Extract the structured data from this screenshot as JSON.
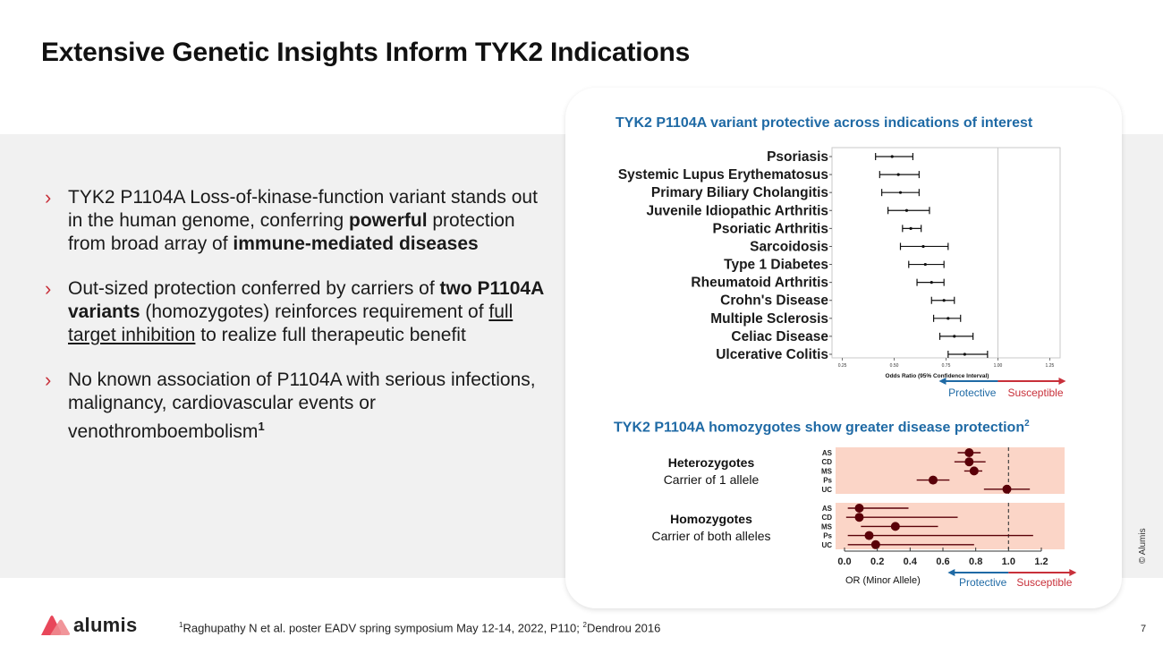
{
  "title": "Extensive Genetic Insights Inform TYK2 Indications",
  "bullets": [
    {
      "parts": [
        {
          "text": "TYK2 P1104A Loss-of-kinase-function variant stands out in the human genome, conferring ",
          "style": "normal"
        },
        {
          "text": "powerful",
          "style": "bold"
        },
        {
          "text": " protection from broad array of ",
          "style": "normal"
        },
        {
          "text": "immune-mediated diseases",
          "style": "bold"
        }
      ]
    },
    {
      "parts": [
        {
          "text": "Out-sized protection conferred by carriers of ",
          "style": "normal"
        },
        {
          "text": "two P1104A variants",
          "style": "bold"
        },
        {
          "text": " (homozygotes) reinforces requirement of ",
          "style": "normal"
        },
        {
          "text": "full target inhibition",
          "style": "underline"
        },
        {
          "text": " to realize full therapeutic benefit",
          "style": "normal"
        }
      ]
    },
    {
      "parts": [
        {
          "text": "No known association of P1104A with serious infections, malignancy, cardiovascular events or venothromboembolism",
          "style": "normal"
        },
        {
          "text": "1",
          "style": "supbold"
        }
      ]
    }
  ],
  "chart_data": [
    {
      "type": "forest",
      "title": "TYK2 P1104A variant protective across indications of interest",
      "xlabel": "Odds Ratio (95% Confidence Interval)",
      "xlim": [
        0.2,
        1.3
      ],
      "xticks": [
        "0.25",
        "0.50",
        "0.75",
        "1.00",
        "1.25"
      ],
      "xtick_values": [
        0.25,
        0.5,
        0.75,
        1.0,
        1.25
      ],
      "reference_line": 1.0,
      "grid": false,
      "direction_labels": {
        "left": "Protective",
        "right": "Susceptible"
      },
      "rows": [
        {
          "label": "Psoriasis",
          "or": 0.49,
          "lo": 0.41,
          "hi": 0.59
        },
        {
          "label": "Systemic Lupus Erythematosus",
          "or": 0.52,
          "lo": 0.43,
          "hi": 0.62
        },
        {
          "label": "Primary Biliary Cholangitis",
          "or": 0.53,
          "lo": 0.44,
          "hi": 0.62
        },
        {
          "label": "Juvenile Idiopathic Arthritis",
          "or": 0.56,
          "lo": 0.47,
          "hi": 0.67
        },
        {
          "label": "Psoriatic Arthritis",
          "or": 0.58,
          "lo": 0.54,
          "hi": 0.63
        },
        {
          "label": "Sarcoidosis",
          "or": 0.64,
          "lo": 0.53,
          "hi": 0.76
        },
        {
          "label": "Type 1 Diabetes",
          "or": 0.65,
          "lo": 0.57,
          "hi": 0.74
        },
        {
          "label": "Rheumatoid Arthritis",
          "or": 0.68,
          "lo": 0.61,
          "hi": 0.74
        },
        {
          "label": "Crohn's Disease",
          "or": 0.74,
          "lo": 0.68,
          "hi": 0.79
        },
        {
          "label": "Multiple Sclerosis",
          "or": 0.76,
          "lo": 0.69,
          "hi": 0.82
        },
        {
          "label": "Celiac Disease",
          "or": 0.79,
          "lo": 0.72,
          "hi": 0.88
        },
        {
          "label": "Ulcerative Colitis",
          "or": 0.84,
          "lo": 0.76,
          "hi": 0.95
        }
      ]
    },
    {
      "type": "forest",
      "title": "TYK2 P1104A homozygotes show greater disease protection",
      "title_sup": "2",
      "xlabel": "OR (Minor Allele)",
      "xlim": [
        0.0,
        1.3
      ],
      "xticks": [
        "0.0",
        "0.2",
        "0.4",
        "0.6",
        "0.8",
        "1.0",
        "1.2"
      ],
      "xtick_values": [
        0.0,
        0.2,
        0.4,
        0.6,
        0.8,
        1.0,
        1.2
      ],
      "reference_line": 1.0,
      "direction_labels": {
        "left": "Protective",
        "right": "Susceptible"
      },
      "groups": [
        {
          "name": "Heterozygotes",
          "subtitle": "Carrier of 1 allele",
          "rows": [
            {
              "label": "AS",
              "or": 0.76,
              "lo": 0.69,
              "hi": 0.83
            },
            {
              "label": "CD",
              "or": 0.76,
              "lo": 0.67,
              "hi": 0.86
            },
            {
              "label": "MS",
              "or": 0.79,
              "lo": 0.73,
              "hi": 0.84
            },
            {
              "label": "Ps",
              "or": 0.54,
              "lo": 0.44,
              "hi": 0.64
            },
            {
              "label": "UC",
              "or": 0.99,
              "lo": 0.85,
              "hi": 1.13
            }
          ]
        },
        {
          "name": "Homozygotes",
          "subtitle": "Carrier of both alleles",
          "rows": [
            {
              "label": "AS",
              "or": 0.09,
              "lo": 0.02,
              "hi": 0.39
            },
            {
              "label": "CD",
              "or": 0.09,
              "lo": 0.01,
              "hi": 0.69
            },
            {
              "label": "MS",
              "or": 0.31,
              "lo": 0.1,
              "hi": 0.57
            },
            {
              "label": "Ps",
              "or": 0.15,
              "lo": 0.02,
              "hi": 1.15
            },
            {
              "label": "UC",
              "or": 0.19,
              "lo": 0.02,
              "hi": 0.79
            }
          ]
        }
      ]
    }
  ],
  "footer": {
    "logo_text": "alumis",
    "reference_sup1": "1",
    "reference_text1": "Raghupathy N et al. poster EADV spring symposium May 12-14, 2022, P110; ",
    "reference_sup2": "2",
    "reference_text2": "Dendrou 2016",
    "page_number": "7",
    "copyright": "© Alumis"
  },
  "colors": {
    "accent_red": "#c8303a",
    "title_blue": "#1f6aa5",
    "band_grey": "#f1f1f1",
    "panel_pink": "#fbd5c7",
    "dot_dark_red": "#5a0008"
  }
}
